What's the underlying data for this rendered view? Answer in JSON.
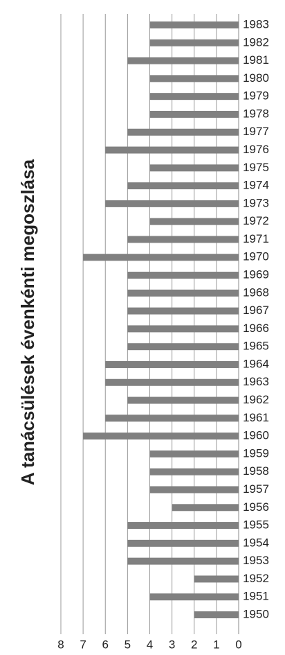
{
  "chart_data": {
    "type": "bar",
    "title": "A tanácsülések évenkénti megoszlása",
    "categories": [
      "1950",
      "1951",
      "1952",
      "1953",
      "1954",
      "1955",
      "1956",
      "1957",
      "1958",
      "1959",
      "1960",
      "1961",
      "1962",
      "1963",
      "1964",
      "1965",
      "1966",
      "1967",
      "1968",
      "1969",
      "1970",
      "1971",
      "1972",
      "1973",
      "1974",
      "1975",
      "1976",
      "1977",
      "1978",
      "1979",
      "1980",
      "1981",
      "1982",
      "1983"
    ],
    "values": [
      2,
      4,
      2,
      5,
      5,
      5,
      3,
      4,
      4,
      4,
      7,
      6,
      5,
      6,
      6,
      5,
      5,
      5,
      5,
      5,
      7,
      5,
      4,
      6,
      5,
      4,
      6,
      5,
      4,
      4,
      4,
      5,
      4,
      4
    ],
    "color": "#808080",
    "ylim": [
      0,
      8
    ],
    "yticks": [
      0,
      1,
      2,
      3,
      4,
      5,
      6,
      7,
      8
    ],
    "grid": true
  }
}
